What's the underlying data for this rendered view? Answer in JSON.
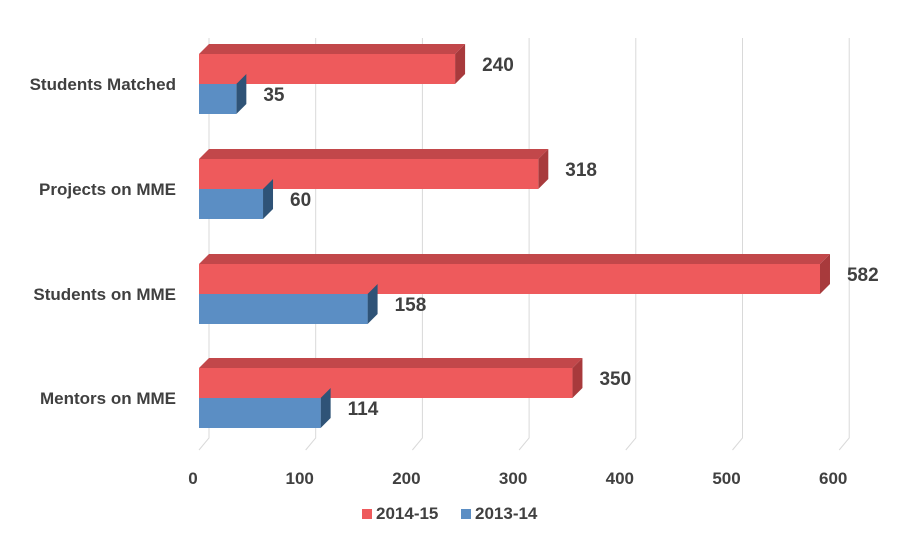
{
  "chart_data": {
    "type": "bar",
    "orientation": "horizontal",
    "style": "3d",
    "categories": [
      "Students Matched",
      "Projects on MME",
      "Students on MME",
      "Mentors on MME"
    ],
    "series": [
      {
        "name": "2014-15",
        "values": [
          240,
          318,
          582,
          350
        ],
        "color": "#EE5A5C",
        "side_color": "#A83A3C",
        "top_color": "#C2474A"
      },
      {
        "name": "2013-14",
        "values": [
          35,
          60,
          158,
          114
        ],
        "color": "#5B8EC4",
        "side_color": "#2F5377",
        "top_color": "#3F6D9A"
      }
    ],
    "x_ticks": [
      0,
      100,
      200,
      300,
      400,
      500,
      600
    ],
    "xlim": [
      0,
      600
    ],
    "grid": "vertical",
    "legend": "bottom",
    "title": "",
    "xlabel": "",
    "ylabel": ""
  }
}
